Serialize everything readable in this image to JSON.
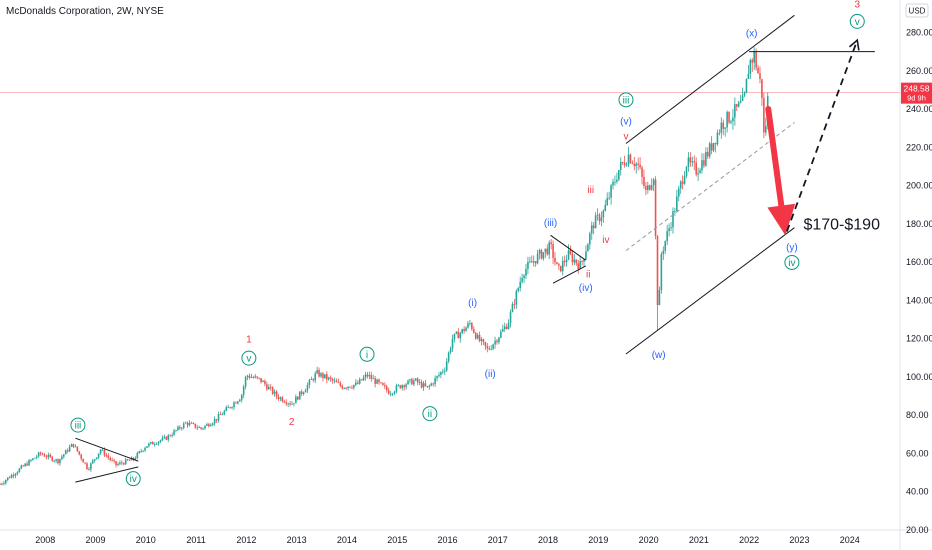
{
  "chart_data": {
    "type": "candlestick",
    "title": "McDonalds Corporation, 2W, NYSE",
    "currency": "USD",
    "x_ticks": [
      "2008",
      "2009",
      "2010",
      "2011",
      "2012",
      "2013",
      "2014",
      "2015",
      "2016",
      "2017",
      "2018",
      "2019",
      "2020",
      "2021",
      "2022",
      "2023",
      "2024"
    ],
    "y_ticks": [
      20,
      40,
      60,
      80,
      100,
      120,
      140,
      160,
      180,
      200,
      220,
      240,
      260,
      280
    ],
    "y_tick_labels": [
      "20.00",
      "40.00",
      "60.00",
      "80.00",
      "100.00",
      "120.00",
      "140.00",
      "160.00",
      "180.00",
      "200.00",
      "220.00",
      "240.00",
      "260.00",
      "280.00"
    ],
    "ylim": [
      20,
      297
    ],
    "xlim": [
      2007.1,
      2025
    ],
    "last_price": {
      "value": 248.58,
      "label": "248.58",
      "countdown": "9d 9h",
      "color": "#f23645"
    },
    "colors": {
      "up": "#26a69a",
      "down": "#ef5350",
      "red_label": "#f23645",
      "blue_label": "#2962ff",
      "green_label": "#089981",
      "line": "#131722",
      "arrow": "#f23645"
    },
    "price_path": [
      [
        2007.1,
        44
      ],
      [
        2007.5,
        52
      ],
      [
        2007.9,
        60
      ],
      [
        2008.25,
        56
      ],
      [
        2008.55,
        65
      ],
      [
        2008.85,
        52
      ],
      [
        2009.1,
        62
      ],
      [
        2009.4,
        54
      ],
      [
        2009.75,
        57
      ],
      [
        2010.0,
        64
      ],
      [
        2010.4,
        68
      ],
      [
        2010.8,
        76
      ],
      [
        2011.1,
        73
      ],
      [
        2011.4,
        78
      ],
      [
        2011.9,
        90
      ],
      [
        2012.0,
        101
      ],
      [
        2012.3,
        98
      ],
      [
        2012.6,
        90
      ],
      [
        2012.9,
        86
      ],
      [
        2013.2,
        95
      ],
      [
        2013.4,
        102
      ],
      [
        2013.7,
        98
      ],
      [
        2013.9,
        95
      ],
      [
        2014.2,
        96
      ],
      [
        2014.4,
        101
      ],
      [
        2014.6,
        97
      ],
      [
        2014.85,
        92
      ],
      [
        2015.1,
        96
      ],
      [
        2015.35,
        98
      ],
      [
        2015.6,
        94
      ],
      [
        2015.8,
        100
      ],
      [
        2015.95,
        105
      ],
      [
        2016.1,
        120
      ],
      [
        2016.3,
        124
      ],
      [
        2016.45,
        128
      ],
      [
        2016.6,
        120
      ],
      [
        2016.8,
        114
      ],
      [
        2016.95,
        119
      ],
      [
        2017.2,
        128
      ],
      [
        2017.5,
        155
      ],
      [
        2017.8,
        163
      ],
      [
        2018.05,
        168
      ],
      [
        2018.2,
        155
      ],
      [
        2018.4,
        164
      ],
      [
        2018.65,
        158
      ],
      [
        2018.9,
        180
      ],
      [
        2019.1,
        186
      ],
      [
        2019.4,
        208
      ],
      [
        2019.6,
        216
      ],
      [
        2019.8,
        210
      ],
      [
        2019.95,
        196
      ],
      [
        2020.1,
        206
      ],
      [
        2020.19,
        128
      ],
      [
        2020.25,
        164
      ],
      [
        2020.5,
        186
      ],
      [
        2020.75,
        212
      ],
      [
        2020.95,
        208
      ],
      [
        2021.2,
        218
      ],
      [
        2021.45,
        232
      ],
      [
        2021.7,
        238
      ],
      [
        2021.9,
        244
      ],
      [
        2022.0,
        264
      ],
      [
        2022.1,
        268
      ],
      [
        2022.25,
        250
      ],
      [
        2022.3,
        222
      ],
      [
        2022.38,
        248.58
      ]
    ],
    "channels": [
      {
        "style": "solid",
        "points": [
          [
            2019.55,
            222
          ],
          [
            2022.9,
            289
          ]
        ]
      },
      {
        "style": "solid",
        "points": [
          [
            2019.55,
            112
          ],
          [
            2022.9,
            178
          ]
        ]
      },
      {
        "style": "dashed",
        "points": [
          [
            2019.55,
            166
          ],
          [
            2022.9,
            233
          ]
        ]
      },
      {
        "style": "solid",
        "points": [
          [
            2022.0,
            270
          ],
          [
            2024.5,
            270
          ]
        ]
      },
      {
        "style": "solid",
        "points": [
          [
            2008.6,
            68
          ],
          [
            2009.85,
            56
          ]
        ]
      },
      {
        "style": "solid",
        "points": [
          [
            2008.6,
            45
          ],
          [
            2009.85,
            53
          ]
        ]
      },
      {
        "style": "solid",
        "points": [
          [
            2018.05,
            174
          ],
          [
            2018.75,
            161
          ]
        ]
      },
      {
        "style": "solid",
        "points": [
          [
            2018.1,
            149
          ],
          [
            2018.75,
            158
          ]
        ]
      }
    ],
    "arrows": [
      {
        "style": "solid-thick",
        "from": [
          2022.38,
          240
        ],
        "to": [
          2022.72,
          174
        ]
      },
      {
        "style": "dashed",
        "from": [
          2022.75,
          176
        ],
        "to": [
          2024.15,
          276
        ]
      }
    ],
    "target_label": {
      "text": "$170-$190",
      "x": 2023.08,
      "y": 177
    },
    "annotations": [
      {
        "text": "3",
        "x": 2024.15,
        "y": 293,
        "kind": "red"
      },
      {
        "text": "v",
        "x": 2024.15,
        "y": 284,
        "kind": "green-circle"
      },
      {
        "text": "(x)",
        "x": 2022.05,
        "y": 278,
        "kind": "blue"
      },
      {
        "text": "iii",
        "x": 2019.55,
        "y": 243,
        "kind": "green-circle"
      },
      {
        "text": "(v)",
        "x": 2019.55,
        "y": 232,
        "kind": "blue"
      },
      {
        "text": "v",
        "x": 2019.55,
        "y": 224,
        "kind": "red"
      },
      {
        "text": "iii",
        "x": 2018.85,
        "y": 196,
        "kind": "red"
      },
      {
        "text": "iv",
        "x": 2019.15,
        "y": 170,
        "kind": "red"
      },
      {
        "text": "(iii)",
        "x": 2018.05,
        "y": 179,
        "kind": "blue"
      },
      {
        "text": "ii",
        "x": 2018.8,
        "y": 152,
        "kind": "red"
      },
      {
        "text": "(iv)",
        "x": 2018.75,
        "y": 145,
        "kind": "blue"
      },
      {
        "text": "(w)",
        "x": 2020.2,
        "y": 110,
        "kind": "blue"
      },
      {
        "text": "(y)",
        "x": 2022.85,
        "y": 166,
        "kind": "blue"
      },
      {
        "text": "iv",
        "x": 2022.85,
        "y": 158,
        "kind": "green-circle"
      },
      {
        "text": "(i)",
        "x": 2016.5,
        "y": 137,
        "kind": "blue"
      },
      {
        "text": "(ii)",
        "x": 2016.85,
        "y": 100,
        "kind": "blue"
      },
      {
        "text": "1",
        "x": 2012.05,
        "y": 118,
        "kind": "red"
      },
      {
        "text": "v",
        "x": 2012.05,
        "y": 108,
        "kind": "green-circle"
      },
      {
        "text": "2",
        "x": 2012.9,
        "y": 75,
        "kind": "red"
      },
      {
        "text": "i",
        "x": 2014.4,
        "y": 110,
        "kind": "green-circle"
      },
      {
        "text": "ii",
        "x": 2015.65,
        "y": 79,
        "kind": "green-circle"
      },
      {
        "text": "iii",
        "x": 2008.65,
        "y": 73,
        "kind": "green-circle"
      },
      {
        "text": "iv",
        "x": 2009.75,
        "y": 45,
        "kind": "green-circle"
      }
    ]
  }
}
